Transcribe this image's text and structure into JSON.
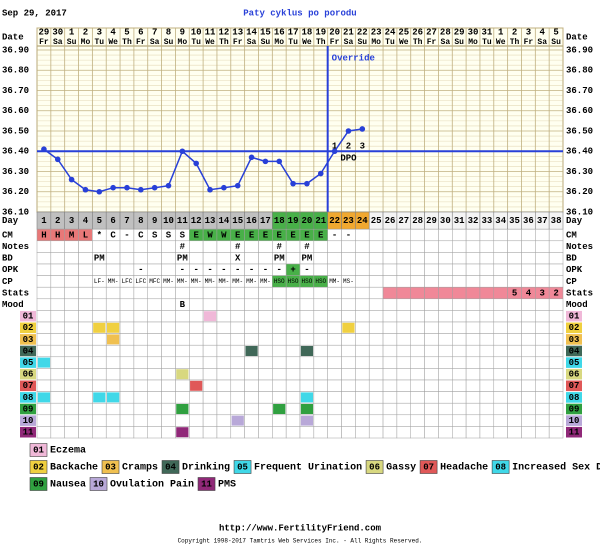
{
  "header": {
    "date": "Sep 29, 2017",
    "title": "Paty cyklus po porodu"
  },
  "chart_data": {
    "type": "line",
    "date_label": "Date",
    "day_label": "Day",
    "dates": [
      29,
      30,
      1,
      2,
      3,
      4,
      5,
      6,
      7,
      8,
      9,
      10,
      11,
      12,
      13,
      14,
      15,
      16,
      17,
      18,
      19,
      20,
      21,
      22,
      23,
      24,
      25,
      26,
      27,
      28,
      29,
      30,
      31,
      1,
      2,
      3,
      4,
      5
    ],
    "weekdays": [
      "Fr",
      "Sa",
      "Su",
      "Mo",
      "Tu",
      "We",
      "Th",
      "Fr",
      "Sa",
      "Su",
      "Mo",
      "Tu",
      "We",
      "Th",
      "Fr",
      "Sa",
      "Su",
      "Mo",
      "Tu",
      "We",
      "Th",
      "Fr",
      "Sa",
      "Su",
      "Mo",
      "Tu",
      "We",
      "Th",
      "Fr",
      "Sa",
      "Su",
      "Mo",
      "Tu",
      "We",
      "Th",
      "Fr",
      "Sa",
      "Su"
    ],
    "categories": [
      1,
      2,
      3,
      4,
      5,
      6,
      7,
      8,
      9,
      10,
      11,
      12,
      13,
      14,
      15,
      16,
      17,
      18,
      19,
      20,
      21,
      22,
      23,
      24,
      25,
      26,
      27,
      28,
      29,
      30,
      31,
      32,
      33,
      34,
      35,
      36,
      37,
      38
    ],
    "day_fills": [
      "#c0c0c0",
      "#c0c0c0",
      "#c0c0c0",
      "#c0c0c0",
      "#c0c0c0",
      "#c0c0c0",
      "#c0c0c0",
      "#c0c0c0",
      "#c0c0c0",
      "#c0c0c0",
      "#c0c0c0",
      "#c0c0c0",
      "#c0c0c0",
      "#c0c0c0",
      "#c0c0c0",
      "#c0c0c0",
      "#c0c0c0",
      "#48b048",
      "#48b048",
      "#48b048",
      "#48b048",
      "#f0a830",
      "#f0a830",
      "#f0a830",
      null,
      null,
      null,
      null,
      null,
      null,
      null,
      null,
      null,
      null,
      null,
      null,
      null,
      null
    ],
    "series": [
      {
        "color": "#2840d8",
        "values": [
          36.41,
          36.36,
          36.26,
          36.21,
          36.2,
          36.22,
          36.22,
          36.21,
          36.22,
          36.23,
          36.4,
          36.34,
          36.21,
          36.22,
          36.23,
          36.37,
          36.35,
          36.35,
          36.24,
          36.24,
          36.29,
          36.4,
          36.5,
          36.51,
          null,
          null,
          null,
          null,
          null,
          null,
          null,
          null,
          null,
          null,
          null,
          null,
          null,
          null
        ]
      }
    ],
    "ylim": [
      36.1,
      36.9
    ],
    "yticks": [
      {
        "value": 36.9,
        "label": "36.90"
      },
      {
        "value": 36.8,
        "label": "36.80"
      },
      {
        "value": 36.7,
        "label": "36.70"
      },
      {
        "value": 36.6,
        "label": "36.60"
      },
      {
        "value": 36.5,
        "label": "36.50"
      },
      {
        "value": 36.4,
        "label": "36.40"
      },
      {
        "value": 36.3,
        "label": "36.30"
      },
      {
        "value": 36.2,
        "label": "36.20"
      },
      {
        "value": 36.1,
        "label": "36.10"
      }
    ],
    "coverline": 36.4,
    "override_label": "Override",
    "dpo": [
      null,
      null,
      null,
      null,
      null,
      null,
      null,
      null,
      null,
      null,
      null,
      null,
      null,
      null,
      null,
      null,
      null,
      null,
      null,
      null,
      null,
      1,
      2,
      3,
      null,
      null,
      null,
      null,
      null,
      null,
      null,
      null,
      null,
      null,
      null,
      null,
      null,
      null
    ],
    "dpo_label": "DPO"
  },
  "grid_rows": [
    {
      "label": "CM",
      "values": [
        "H",
        "H",
        "M",
        "L",
        "*",
        "C",
        "-",
        "C",
        "S",
        "S",
        "S",
        "E",
        "W",
        "W",
        "E",
        "E",
        "E",
        "E",
        "E",
        "E",
        "E",
        "-",
        "-",
        null,
        null,
        null,
        null,
        null,
        null,
        null,
        null,
        null,
        null,
        null,
        null,
        null,
        null,
        null
      ],
      "fills": [
        "#e87878",
        "#e87878",
        "#e87878",
        "#e87878",
        null,
        null,
        null,
        null,
        null,
        null,
        null,
        "#48b048",
        "#48b048",
        "#48b048",
        "#48b048",
        "#48b048",
        "#48b048",
        "#48b048",
        "#48b048",
        "#48b048",
        "#48b048",
        null,
        null,
        null,
        null,
        null,
        null,
        null,
        null,
        null,
        null,
        null,
        null,
        null,
        null,
        null,
        null,
        null
      ]
    },
    {
      "label": "Notes",
      "values": [
        null,
        null,
        null,
        null,
        null,
        null,
        null,
        null,
        null,
        null,
        "#",
        null,
        null,
        null,
        "#",
        null,
        null,
        "#",
        null,
        "#",
        null,
        null,
        null,
        null,
        null,
        null,
        null,
        null,
        null,
        null,
        null,
        null,
        null,
        null,
        null,
        null,
        null,
        null
      ]
    },
    {
      "label": "BD",
      "values": [
        null,
        null,
        null,
        null,
        "PM",
        null,
        null,
        null,
        null,
        null,
        "PM",
        null,
        null,
        null,
        "X",
        null,
        null,
        "PM",
        null,
        "PM",
        null,
        null,
        null,
        null,
        null,
        null,
        null,
        null,
        null,
        null,
        null,
        null,
        null,
        null,
        null,
        null,
        null,
        null
      ]
    },
    {
      "label": "OPK",
      "values": [
        null,
        null,
        null,
        null,
        null,
        null,
        null,
        "-",
        null,
        null,
        "-",
        "-",
        "-",
        "-",
        "-",
        "-",
        "-",
        "-",
        "+",
        "-",
        null,
        null,
        null,
        null,
        null,
        null,
        null,
        null,
        null,
        null,
        null,
        null,
        null,
        null,
        null,
        null,
        null,
        null
      ],
      "fills": [
        null,
        null,
        null,
        null,
        null,
        null,
        null,
        null,
        null,
        null,
        null,
        null,
        null,
        null,
        null,
        null,
        null,
        null,
        "#48b048",
        null,
        null,
        null,
        null,
        null,
        null,
        null,
        null,
        null,
        null,
        null,
        null,
        null,
        null,
        null,
        null,
        null,
        null,
        null
      ]
    },
    {
      "label": "CP",
      "values": [
        null,
        null,
        null,
        null,
        "LF-",
        "MM-",
        "LFC",
        "LFC",
        "MFC",
        "MM-",
        "MM-",
        "MM-",
        "MM-",
        "MM-",
        "MM-",
        "MM-",
        "MM-",
        "HSO",
        "HSO",
        "HSO",
        "HSO",
        "MM-",
        "MS-",
        null,
        null,
        null,
        null,
        null,
        null,
        null,
        null,
        null,
        null,
        null,
        null,
        null,
        null,
        null
      ],
      "fills": [
        null,
        null,
        null,
        null,
        null,
        null,
        null,
        null,
        null,
        null,
        null,
        null,
        null,
        null,
        null,
        null,
        null,
        "#48b048",
        "#48b048",
        "#48b048",
        "#48b048",
        null,
        null,
        null,
        null,
        null,
        null,
        null,
        null,
        null,
        null,
        null,
        null,
        null,
        null,
        null,
        null,
        null
      ]
    },
    {
      "label": "Stats",
      "values": [
        null,
        null,
        null,
        null,
        null,
        null,
        null,
        null,
        null,
        null,
        null,
        null,
        null,
        null,
        null,
        null,
        null,
        null,
        null,
        null,
        null,
        null,
        null,
        null,
        null,
        null,
        null,
        null,
        null,
        null,
        null,
        null,
        null,
        null,
        5,
        4,
        3,
        2
      ],
      "fills": [
        null,
        null,
        null,
        null,
        null,
        null,
        null,
        null,
        null,
        null,
        null,
        null,
        null,
        null,
        null,
        null,
        null,
        null,
        null,
        null,
        null,
        null,
        null,
        null,
        null,
        "#f08898",
        "#f08898",
        "#f08898",
        "#f08898",
        "#f08898",
        "#f08898",
        "#f08898",
        "#f08898",
        "#f08898",
        "#f08898",
        "#f08898",
        "#f08898",
        "#f08898"
      ]
    },
    {
      "label": "Mood",
      "values": [
        null,
        null,
        null,
        null,
        null,
        null,
        null,
        null,
        null,
        null,
        "B",
        null,
        null,
        null,
        null,
        null,
        null,
        null,
        null,
        null,
        null,
        null,
        null,
        null,
        null,
        null,
        null,
        null,
        null,
        null,
        null,
        null,
        null,
        null,
        null,
        null,
        null,
        null
      ]
    }
  ],
  "symptoms": [
    {
      "code": "01",
      "label": "Eczema",
      "color": "#f0b8d8",
      "days": [
        13
      ]
    },
    {
      "code": "02",
      "label": "Backache",
      "color": "#f0d040",
      "days": [
        5,
        6,
        23
      ]
    },
    {
      "code": "03",
      "label": "Cramps",
      "color": "#f0c050",
      "days": [
        6
      ]
    },
    {
      "code": "04",
      "label": "Drinking",
      "color": "#406858",
      "days": [
        16,
        20
      ]
    },
    {
      "code": "05",
      "label": "Frequent Urination",
      "color": "#40d8e8",
      "days": [
        1
      ]
    },
    {
      "code": "06",
      "label": "Gassy",
      "color": "#d8d880",
      "days": [
        11
      ]
    },
    {
      "code": "07",
      "label": "Headache",
      "color": "#e05858",
      "days": [
        12
      ]
    },
    {
      "code": "08",
      "label": "Increased Sex Drive",
      "color": "#40d8e8",
      "days": [
        1,
        5,
        6,
        20
      ]
    },
    {
      "code": "09",
      "label": "Nausea",
      "color": "#30a040",
      "days": [
        11,
        18,
        20
      ]
    },
    {
      "code": "10",
      "label": "Ovulation Pain",
      "color": "#b8a8d8",
      "days": [
        15,
        20
      ]
    },
    {
      "code": "11",
      "label": "PMS",
      "color": "#902878",
      "days": [
        11
      ]
    }
  ],
  "footer": {
    "url": "http://www.FertilityFriend.com",
    "copyright": "Copyright 1998-2017 Tamtris Web Services Inc. - All Rights Reserved."
  }
}
